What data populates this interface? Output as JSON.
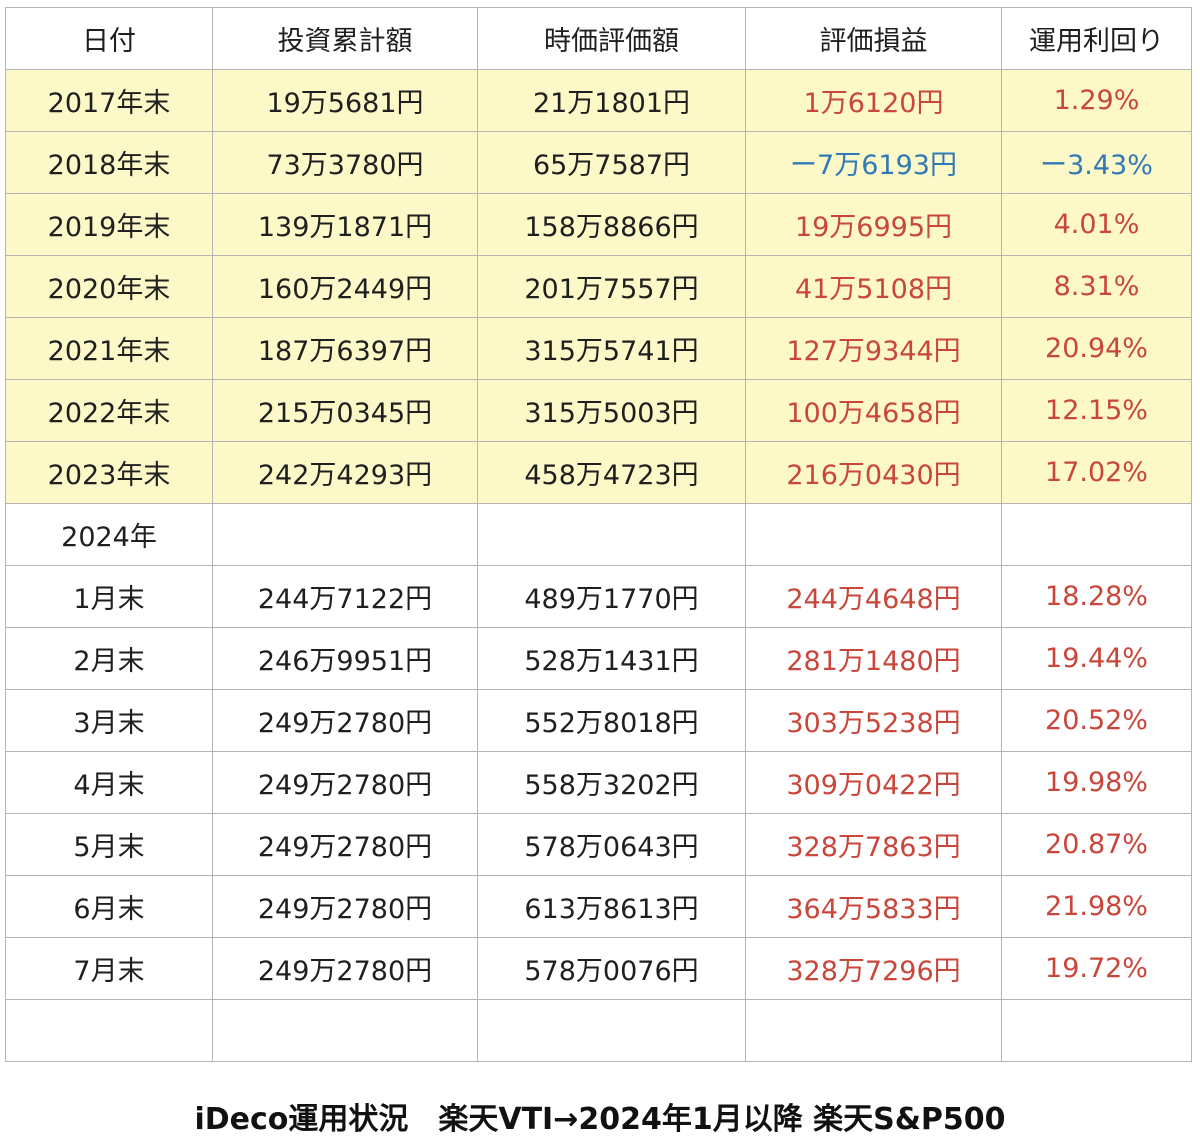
{
  "table": {
    "headers": [
      "日付",
      "投資累計額",
      "時価評価額",
      "評価損益",
      "運用利回り"
    ],
    "rows": [
      {
        "cells": [
          "2017年末",
          "19万5681円",
          "21万1801円",
          "1万6120円",
          "1.29%"
        ],
        "highlight": true,
        "sign": "pos"
      },
      {
        "cells": [
          "2018年末",
          "73万3780円",
          "65万7587円",
          "ー7万6193円",
          "ー3.43%"
        ],
        "highlight": true,
        "sign": "neg"
      },
      {
        "cells": [
          "2019年末",
          "139万1871円",
          "158万8866円",
          "19万6995円",
          "4.01%"
        ],
        "highlight": true,
        "sign": "pos"
      },
      {
        "cells": [
          "2020年末",
          "160万2449円",
          "201万7557円",
          "41万5108円",
          "8.31%"
        ],
        "highlight": true,
        "sign": "pos"
      },
      {
        "cells": [
          "2021年末",
          "187万6397円",
          "315万5741円",
          "127万9344円",
          "20.94%"
        ],
        "highlight": true,
        "sign": "pos"
      },
      {
        "cells": [
          "2022年末",
          "215万0345円",
          "315万5003円",
          "100万4658円",
          "12.15%"
        ],
        "highlight": true,
        "sign": "pos"
      },
      {
        "cells": [
          "2023年末",
          "242万4293円",
          "458万4723円",
          "216万0430円",
          "17.02%"
        ],
        "highlight": true,
        "sign": "pos"
      },
      {
        "cells": [
          "2024年",
          "",
          "",
          "",
          ""
        ],
        "highlight": false,
        "sign": "none"
      },
      {
        "cells": [
          "1月末",
          "244万7122円",
          "489万1770円",
          "244万4648円",
          "18.28%"
        ],
        "highlight": false,
        "sign": "pos"
      },
      {
        "cells": [
          "2月末",
          "246万9951円",
          "528万1431円",
          "281万1480円",
          "19.44%"
        ],
        "highlight": false,
        "sign": "pos"
      },
      {
        "cells": [
          "3月末",
          "249万2780円",
          "552万8018円",
          "303万5238円",
          "20.52%"
        ],
        "highlight": false,
        "sign": "pos"
      },
      {
        "cells": [
          "4月末",
          "249万2780円",
          "558万3202円",
          "309万0422円",
          "19.98%"
        ],
        "highlight": false,
        "sign": "pos"
      },
      {
        "cells": [
          "5月末",
          "249万2780円",
          "578万0643円",
          "328万7863円",
          "20.87%"
        ],
        "highlight": false,
        "sign": "pos"
      },
      {
        "cells": [
          "6月末",
          "249万2780円",
          "613万8613円",
          "364万5833円",
          "21.98%"
        ],
        "highlight": false,
        "sign": "pos"
      },
      {
        "cells": [
          "7月末",
          "249万2780円",
          "578万0076円",
          "328万7296円",
          "19.72%"
        ],
        "highlight": false,
        "sign": "pos"
      },
      {
        "cells": [
          "",
          "",
          "",
          "",
          ""
        ],
        "highlight": false,
        "sign": "none"
      }
    ]
  },
  "caption": "iDeco運用状況　楽天VTI→2024年1月以降 楽天S&P500",
  "colors": {
    "highlight_row": "#fdf8c8",
    "positive": "#c8463a",
    "negative": "#2f79b6",
    "border": "#b4b4b4",
    "text": "#1f1f1f"
  }
}
